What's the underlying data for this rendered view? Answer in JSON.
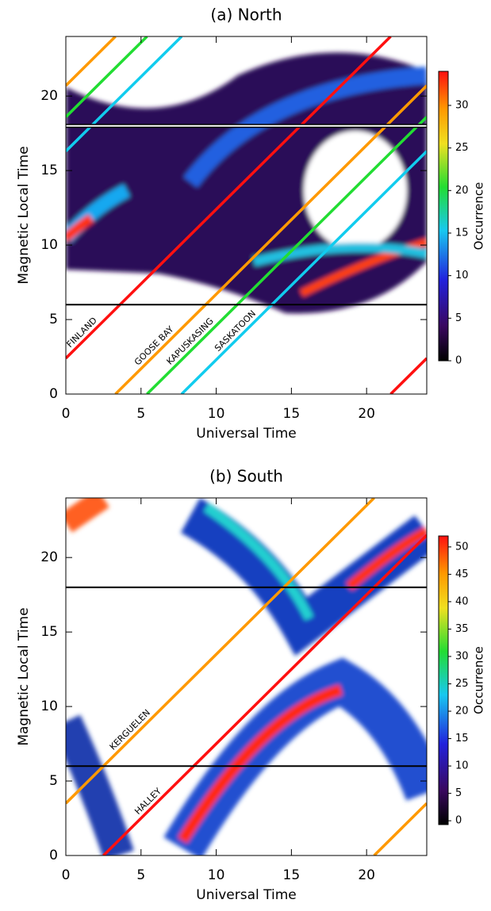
{
  "chart_data": [
    {
      "type": "heatmap",
      "title": "(a) North",
      "xlabel": "Universal Time",
      "ylabel": "Magnetic Local Time",
      "xlim": [
        0,
        24
      ],
      "ylim": [
        0,
        24
      ],
      "xticks": [
        0,
        5,
        10,
        15,
        20
      ],
      "yticks": [
        0,
        5,
        10,
        15,
        20
      ],
      "hlines": [
        6,
        18
      ],
      "colorbar": {
        "label": "Occurrence",
        "lim": [
          0,
          34
        ],
        "ticks": [
          0,
          5,
          10,
          15,
          20,
          25,
          30
        ]
      },
      "series": [
        {
          "name": "FINLAND",
          "color": "#ff1010",
          "x": [
            0,
            21.6,
            null,
            21.6,
            24
          ],
          "values": [
            2.4,
            24,
            null,
            0,
            2.4
          ]
        },
        {
          "name": "GOOSE BAY",
          "color": "#ff9900",
          "x": [
            3.3,
            24,
            null,
            0,
            3.3
          ],
          "values": [
            0,
            20.7,
            null,
            20.7,
            24
          ]
        },
        {
          "name": "KAPUSKASING",
          "color": "#22dd33",
          "x": [
            5.4,
            24,
            null,
            0,
            5.4
          ],
          "values": [
            0,
            18.6,
            null,
            18.6,
            24
          ]
        },
        {
          "name": "SASKATOON",
          "color": "#11ccee",
          "x": [
            7.7,
            24,
            null,
            0,
            7.7
          ],
          "values": [
            0,
            16.3,
            null,
            16.3,
            24
          ]
        }
      ]
    },
    {
      "type": "heatmap",
      "title": "(b) South",
      "xlabel": "Universal Time",
      "ylabel": "Magnetic Local Time",
      "xlim": [
        0,
        24
      ],
      "ylim": [
        0,
        24
      ],
      "xticks": [
        0,
        5,
        10,
        15,
        20
      ],
      "yticks": [
        0,
        5,
        10,
        15,
        20
      ],
      "hlines": [
        6,
        18
      ],
      "colorbar": {
        "label": "Occurrence",
        "lim": [
          -0.7,
          52
        ],
        "ticks": [
          0,
          5,
          10,
          15,
          20,
          25,
          30,
          35,
          40,
          45,
          50
        ]
      },
      "series": [
        {
          "name": "KERGUELEN",
          "color": "#ff9900",
          "x": [
            0,
            20.5,
            null,
            20.5,
            24
          ],
          "values": [
            3.5,
            24,
            null,
            0,
            3.5
          ]
        },
        {
          "name": "HALLEY",
          "color": "#ff1010",
          "x": [
            2.5,
            24
          ],
          "values": [
            0,
            21.5
          ]
        }
      ]
    }
  ]
}
